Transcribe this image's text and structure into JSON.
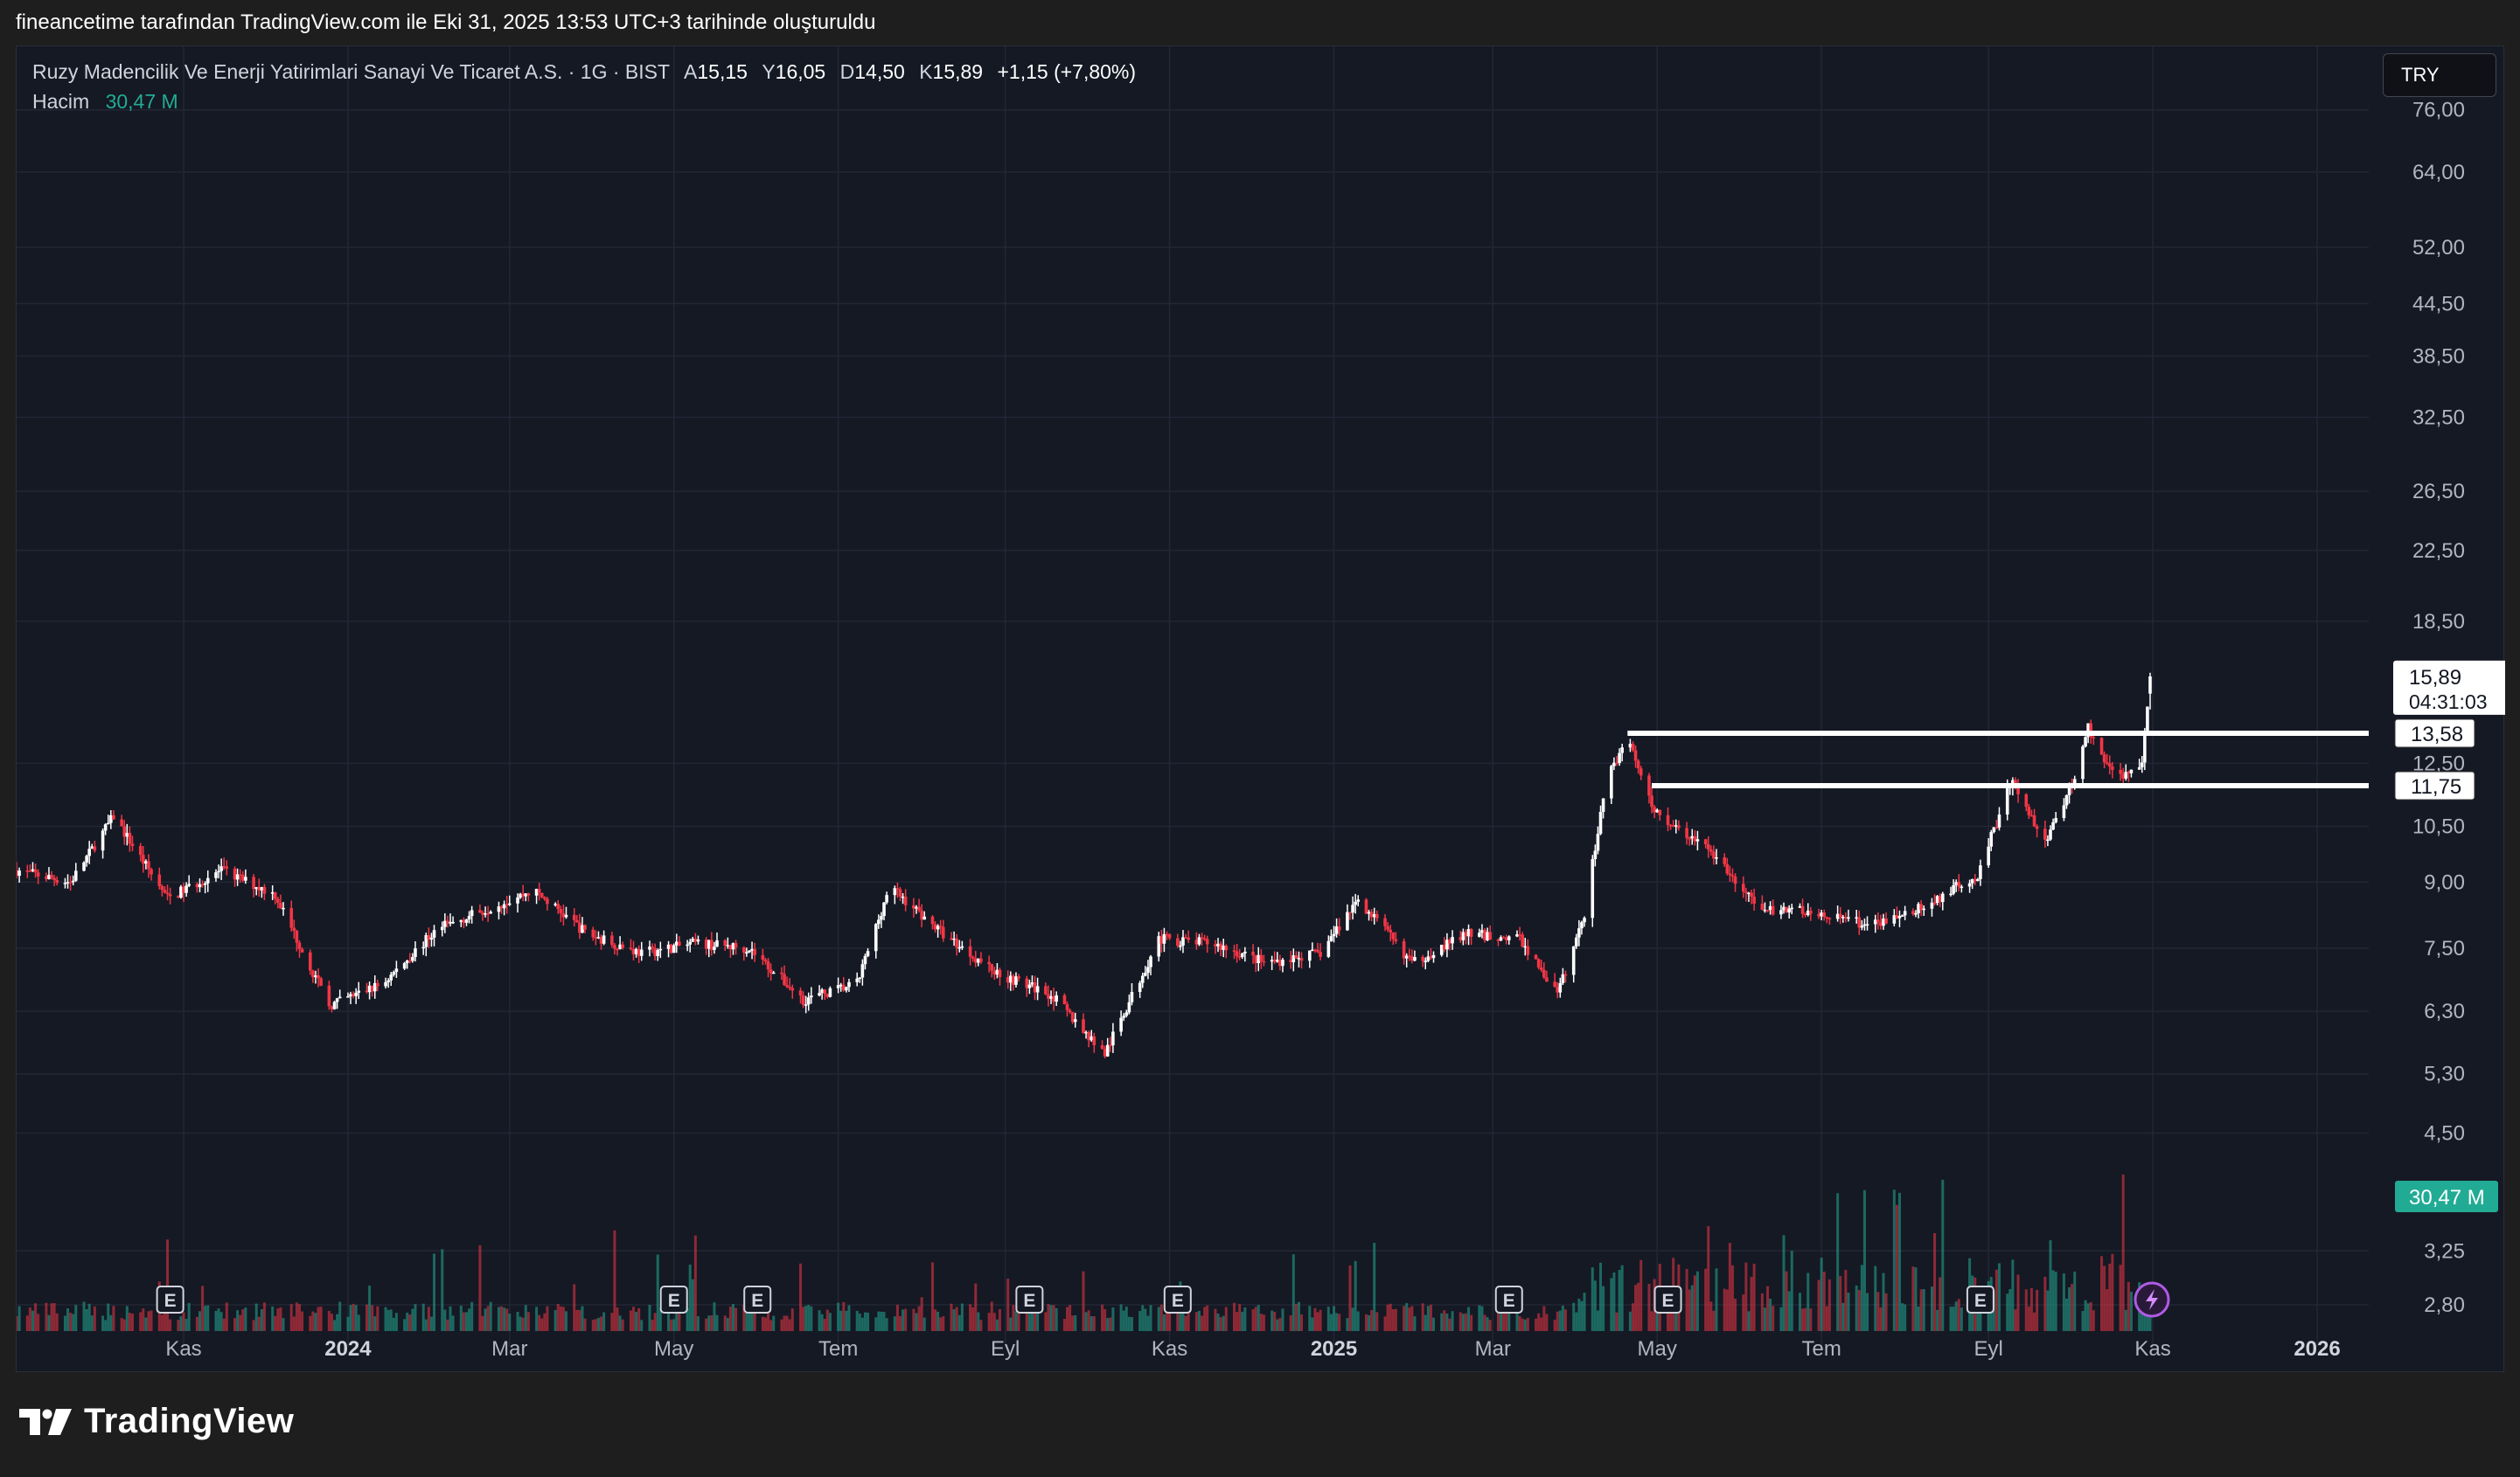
{
  "header": {
    "caption": "fineancetime tarafından TradingView.com ile Eki 31, 2025 13:53 UTC+3 tarihinde oluşturuldu"
  },
  "legend": {
    "symbol": "Ruzy Madencilik Ve Enerji Yatirimlari Sanayi Ve Ticaret A.S. · 1G · BIST",
    "open_label": "A",
    "open": "15,15",
    "high_label": "Y",
    "high": "16,05",
    "low_label": "D",
    "low": "14,50",
    "close_label": "K",
    "close": "15,89",
    "change": "+1,15 (+7,80%)",
    "volume_label": "Hacim",
    "volume_value": "30,47 M"
  },
  "currency_button": "TRY",
  "brand": {
    "name": "TradingView"
  },
  "colors": {
    "background": "#151924",
    "up": "#ffffff",
    "down": "#f23645",
    "volume_up": "#22ab94",
    "volume_down": "#f23645",
    "grid": "#232735",
    "level_line": "#ffffff",
    "volume_badge": "#22ab94"
  },
  "chart_data": {
    "type": "candlestick",
    "scale": "log",
    "y_ticks": [
      "76,00",
      "64,00",
      "52,00",
      "44,50",
      "38,50",
      "32,50",
      "26,50",
      "22,50",
      "18,50",
      "15,89",
      "13,58",
      "12,50",
      "11,75",
      "10,50",
      "9,00",
      "7,50",
      "6,30",
      "5,30",
      "4,50",
      "3,25",
      "2,80"
    ],
    "x_ticks": [
      {
        "label": "Kas",
        "bold": false
      },
      {
        "label": "2024",
        "bold": true
      },
      {
        "label": "Mar",
        "bold": false
      },
      {
        "label": "May",
        "bold": false
      },
      {
        "label": "Tem",
        "bold": false
      },
      {
        "label": "Eyl",
        "bold": false
      },
      {
        "label": "Kas",
        "bold": false
      },
      {
        "label": "2025",
        "bold": true
      },
      {
        "label": "Mar",
        "bold": false
      },
      {
        "label": "May",
        "bold": false
      },
      {
        "label": "Tem",
        "bold": false
      },
      {
        "label": "Eyl",
        "bold": false
      },
      {
        "label": "Kas",
        "bold": false
      },
      {
        "label": "2026",
        "bold": true
      }
    ],
    "price_path": [
      [
        "2023-08-31",
        9.3
      ],
      [
        "2023-09-20",
        9.0
      ],
      [
        "2023-10-06",
        10.8
      ],
      [
        "2023-10-26",
        8.6
      ],
      [
        "2023-11-15",
        9.3
      ],
      [
        "2023-12-05",
        8.7
      ],
      [
        "2023-12-25",
        6.4
      ],
      [
        "2024-01-14",
        6.8
      ],
      [
        "2024-02-03",
        7.9
      ],
      [
        "2024-02-23",
        8.4
      ],
      [
        "2024-03-10",
        8.8
      ],
      [
        "2024-03-30",
        7.8
      ],
      [
        "2024-04-19",
        7.4
      ],
      [
        "2024-05-09",
        7.6
      ],
      [
        "2024-05-29",
        7.5
      ],
      [
        "2024-06-18",
        6.5
      ],
      [
        "2024-07-08",
        6.8
      ],
      [
        "2024-07-20",
        8.9
      ],
      [
        "2024-08-09",
        7.8
      ],
      [
        "2024-08-29",
        7.0
      ],
      [
        "2024-09-18",
        6.6
      ],
      [
        "2024-10-08",
        5.6
      ],
      [
        "2024-10-28",
        7.7
      ],
      [
        "2024-11-17",
        7.6
      ],
      [
        "2024-12-07",
        7.2
      ],
      [
        "2024-12-27",
        7.4
      ],
      [
        "2025-01-10",
        8.6
      ],
      [
        "2025-01-30",
        7.2
      ],
      [
        "2025-02-19",
        7.8
      ],
      [
        "2025-03-11",
        7.7
      ],
      [
        "2025-03-25",
        6.6
      ],
      [
        "2025-04-04",
        8.2
      ],
      [
        "2025-04-12",
        12.0
      ],
      [
        "2025-04-20",
        13.4
      ],
      [
        "2025-04-30",
        11.0
      ],
      [
        "2025-05-20",
        9.8
      ],
      [
        "2025-06-09",
        8.3
      ],
      [
        "2025-06-29",
        8.3
      ],
      [
        "2025-07-19",
        8.0
      ],
      [
        "2025-08-08",
        8.4
      ],
      [
        "2025-08-28",
        9.2
      ],
      [
        "2025-09-10",
        12.0
      ],
      [
        "2025-09-22",
        10.0
      ],
      [
        "2025-10-02",
        11.8
      ],
      [
        "2025-10-08",
        13.8
      ],
      [
        "2025-10-18",
        12.0
      ],
      [
        "2025-10-28",
        12.5
      ],
      [
        "2025-10-31",
        15.89
      ]
    ],
    "ohlc_last": {
      "date": "2025-10-31",
      "open": 15.15,
      "high": 16.05,
      "low": 14.5,
      "close": 15.89
    },
    "change": {
      "abs": 1.15,
      "pct": 7.8
    },
    "last_volume": "30,47 M",
    "price_label": {
      "value": "15,89",
      "countdown": "04:31:03"
    },
    "levels": [
      {
        "value": 13.58,
        "label": "13,58",
        "from": "2025-04-20",
        "to": "2025-12-17"
      },
      {
        "value": 11.75,
        "label": "11,75",
        "from": "2025-04-29",
        "to": "2025-12-17"
      }
    ],
    "earnings_markers": [
      "2023-10-27",
      "2024-05-01",
      "2024-06-01",
      "2024-09-10",
      "2024-11-04",
      "2025-03-07",
      "2025-05-05",
      "2025-08-29"
    ],
    "event_marker": "2025-10-31",
    "grid": true
  }
}
